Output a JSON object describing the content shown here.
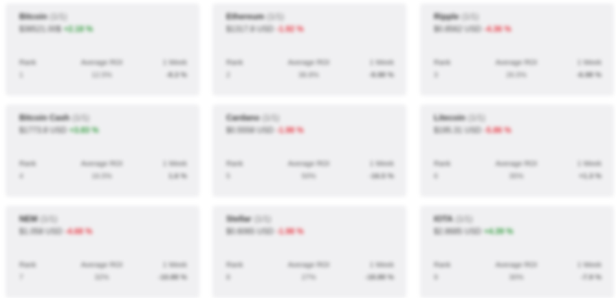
{
  "cards": [
    {
      "name": "Bitcoin",
      "count": "(1/1)",
      "price": "$38521.00$",
      "change": "+2.18 %",
      "dir": "up",
      "s1_label": "Rank",
      "s1_value": "1",
      "s2_label": "Average ROI",
      "s2_value": "12.5%",
      "s3_label": "1 Week",
      "s3_value": "-8.3 %",
      "s3_dir": "down"
    },
    {
      "name": "Ethereum",
      "count": "(1/1)",
      "price": "$1317.8 USD",
      "change": "-1.92 %",
      "dir": "down",
      "s1_label": "Rank",
      "s1_value": "2",
      "s2_label": "Average ROI",
      "s2_value": "38.8%",
      "s3_label": "1 Week",
      "s3_value": "-9.98 %",
      "s3_dir": "down"
    },
    {
      "name": "Ripple",
      "count": "(1/1)",
      "price": "$0.8562 USD",
      "change": "-4.36 %",
      "dir": "down",
      "s1_label": "Rank",
      "s1_value": "3",
      "s2_label": "Average ROI",
      "s2_value": "26.5%",
      "s3_label": "1 Week",
      "s3_value": "-6.98 %",
      "s3_dir": "down"
    },
    {
      "name": "Bitcoin Cash",
      "count": "(1/1)",
      "price": "$1773.8 USD",
      "change": "+3.83 %",
      "dir": "up",
      "s1_label": "Rank",
      "s1_value": "4",
      "s2_label": "Average ROI",
      "s2_value": "16.5%",
      "s3_label": "1 Week",
      "s3_value": "1.6 %",
      "s3_dir": "up"
    },
    {
      "name": "Cardano",
      "count": "(1/1)",
      "price": "$0.5558 USD",
      "change": "-1.98 %",
      "dir": "down",
      "s1_label": "Rank",
      "s1_value": "5",
      "s2_label": "Average ROI",
      "s2_value": "50%",
      "s3_label": "1 Week",
      "s3_value": "-16.5 %",
      "s3_dir": "down"
    },
    {
      "name": "Litecoin",
      "count": "(1/1)",
      "price": "$195.31 USD",
      "change": "-5.86 %",
      "dir": "down",
      "s1_label": "Rank",
      "s1_value": "6",
      "s2_label": "Average ROI",
      "s2_value": "35%",
      "s3_label": "1 Week",
      "s3_value": "+1.3 %",
      "s3_dir": "up"
    },
    {
      "name": "NEM",
      "count": "(1/1)",
      "price": "$1.058 USD",
      "change": "-4.68 %",
      "dir": "down",
      "s1_label": "Rank",
      "s1_value": "7",
      "s2_label": "Average ROI",
      "s2_value": "32%",
      "s3_label": "1 Week",
      "s3_value": "-10.88 %",
      "s3_dir": "down"
    },
    {
      "name": "Stellar",
      "count": "(1/1)",
      "price": "$0.6065 USD",
      "change": "-1.98 %",
      "dir": "down",
      "s1_label": "Rank",
      "s1_value": "8",
      "s2_label": "Average ROI",
      "s2_value": "27%",
      "s3_label": "1 Week",
      "s3_value": "-18.88 %",
      "s3_dir": "down"
    },
    {
      "name": "IOTA",
      "count": "(1/1)",
      "price": "$2.8685 USD",
      "change": "+4.39 %",
      "dir": "up",
      "s1_label": "Rank",
      "s1_value": "9",
      "s2_label": "Average ROI",
      "s2_value": "30%",
      "s3_label": "1 Week",
      "s3_value": "-7.9 %",
      "s3_dir": "down"
    }
  ]
}
